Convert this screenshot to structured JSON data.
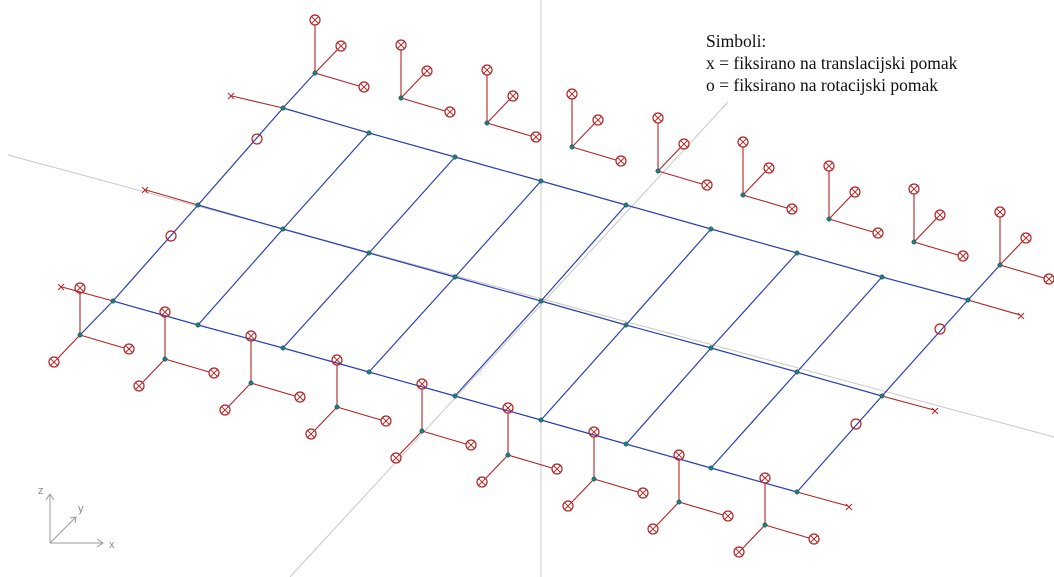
{
  "legend": {
    "title": "Simboli:",
    "line_x": "x = fiksirano na translacijski pomak",
    "line_o": "o = fiksirano na rotacijski pomak"
  },
  "axis_triad": {
    "x": "x",
    "y": "y",
    "z": "z"
  },
  "colors": {
    "grid": "#2b3fb5",
    "support": "#b22222",
    "node": "#1e7f7f",
    "scene_axes": "#c8c8c8"
  },
  "structure": {
    "rows": 3,
    "columns": 9,
    "support_symbols": [
      "translation-fixed-x",
      "rotation-fixed-o"
    ]
  }
}
